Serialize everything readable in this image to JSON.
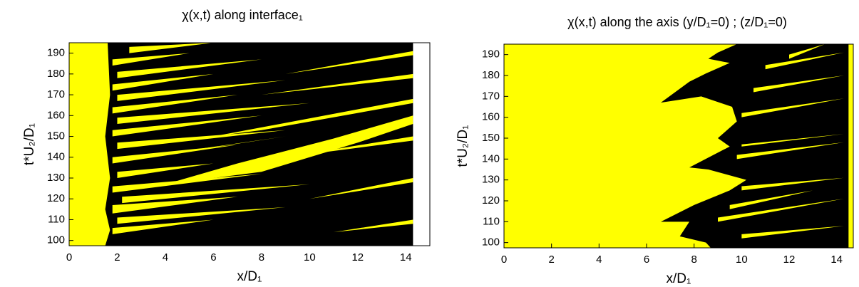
{
  "chart_data": [
    {
      "type": "phase_map",
      "title": "χ(x,t) along interface₁",
      "x_label": "x/D₁",
      "y_label": "t*U₂/D₁",
      "xlim": [
        0,
        15
      ],
      "ylim": [
        97.5,
        195
      ],
      "xticks": [
        0,
        2,
        4,
        6,
        8,
        10,
        12,
        14
      ],
      "yticks": [
        100,
        110,
        120,
        130,
        140,
        150,
        160,
        170,
        180,
        190
      ],
      "background": "#000000",
      "regions": [
        {
          "color": "#ffff00",
          "points": [
            [
              0,
              97.5
            ],
            [
              1.5,
              97.5
            ],
            [
              1.7,
              105
            ],
            [
              1.5,
              115
            ],
            [
              1.7,
              130
            ],
            [
              1.5,
              150
            ],
            [
              1.7,
              170
            ],
            [
              1.6,
              195
            ],
            [
              0,
              195
            ]
          ]
        },
        {
          "color": "#ffff00",
          "points": [
            [
              1.8,
              103
            ],
            [
              6,
              110
            ],
            [
              1.8,
              106
            ]
          ]
        },
        {
          "color": "#ffff00",
          "points": [
            [
              2,
              108
            ],
            [
              9,
              116
            ],
            [
              2,
              111
            ]
          ]
        },
        {
          "color": "#ffff00",
          "points": [
            [
              1.8,
              113
            ],
            [
              7,
              121
            ],
            [
              1.8,
              117
            ]
          ]
        },
        {
          "color": "#ffff00",
          "points": [
            [
              2.2,
              118
            ],
            [
              10,
              127
            ],
            [
              2.2,
              121
            ]
          ]
        },
        {
          "color": "#ffff00",
          "points": [
            [
              1.8,
              123
            ],
            [
              8,
              132
            ],
            [
              1.8,
              126
            ]
          ]
        },
        {
          "color": "#ffff00",
          "points": [
            [
              2,
              130
            ],
            [
              6,
              137
            ],
            [
              2,
              133
            ]
          ]
        },
        {
          "color": "#ffff00",
          "points": [
            [
              1.8,
              137
            ],
            [
              7,
              146
            ],
            [
              1.8,
              140
            ]
          ]
        },
        {
          "color": "#ffff00",
          "points": [
            [
              2,
              144
            ],
            [
              9,
              153
            ],
            [
              2,
              147
            ]
          ]
        },
        {
          "color": "#ffff00",
          "points": [
            [
              1.8,
              150
            ],
            [
              8,
              160
            ],
            [
              1.8,
              153
            ]
          ]
        },
        {
          "color": "#ffff00",
          "points": [
            [
              2,
              156
            ],
            [
              10,
              166
            ],
            [
              2,
              159
            ]
          ]
        },
        {
          "color": "#ffff00",
          "points": [
            [
              1.8,
              161
            ],
            [
              7,
              170
            ],
            [
              1.8,
              164
            ]
          ]
        },
        {
          "color": "#ffff00",
          "points": [
            [
              2,
              167
            ],
            [
              9,
              177
            ],
            [
              2,
              170
            ]
          ]
        },
        {
          "color": "#ffff00",
          "points": [
            [
              1.8,
              172
            ],
            [
              6,
              180
            ],
            [
              1.8,
              175
            ]
          ]
        },
        {
          "color": "#ffff00",
          "points": [
            [
              2,
              178
            ],
            [
              8,
              187
            ],
            [
              2,
              181
            ]
          ]
        },
        {
          "color": "#ffff00",
          "points": [
            [
              1.8,
              184
            ],
            [
              5,
              190
            ],
            [
              1.8,
              187
            ]
          ]
        },
        {
          "color": "#ffff00",
          "points": [
            [
              2.5,
              190
            ],
            [
              6,
              195
            ],
            [
              2.5,
              193
            ]
          ]
        },
        {
          "color": "#ffff00",
          "points": [
            [
              6,
              150
            ],
            [
              14.3,
              168
            ],
            [
              14.3,
              166
            ],
            [
              8,
              153
            ]
          ]
        },
        {
          "color": "#ffff00",
          "points": [
            [
              9,
              140
            ],
            [
              14.3,
              150
            ],
            [
              14.3,
              148
            ]
          ]
        },
        {
          "color": "#ffff00",
          "points": [
            [
              8,
              170
            ],
            [
              14.3,
              180
            ],
            [
              14.3,
              178
            ]
          ]
        },
        {
          "color": "#ffff00",
          "points": [
            [
              9,
              180
            ],
            [
              14.3,
              191
            ],
            [
              14.3,
              189
            ]
          ]
        },
        {
          "color": "#ffff00",
          "points": [
            [
              10,
              120
            ],
            [
              14.3,
              130
            ],
            [
              14.3,
              128
            ]
          ]
        },
        {
          "color": "#ffff00",
          "points": [
            [
              11,
              104
            ],
            [
              14.3,
              110
            ],
            [
              14.3,
              108
            ]
          ]
        },
        {
          "color": "#ffff00",
          "points": [
            [
              3,
              140
            ],
            [
              9,
              150
            ],
            [
              5,
              143
            ]
          ]
        },
        {
          "color": "#ffff00",
          "points": [
            [
              4,
              127
            ],
            [
              8,
              133
            ],
            [
              12,
              147
            ],
            [
              14.3,
              156
            ],
            [
              14.3,
              160
            ],
            [
              11,
              149
            ],
            [
              7,
              137
            ]
          ]
        },
        {
          "color": "#ffffff",
          "points": [
            [
              14.3,
              97.5
            ],
            [
              15,
              97.5
            ],
            [
              15,
              195
            ],
            [
              14.3,
              195
            ]
          ]
        }
      ]
    },
    {
      "type": "phase_map",
      "title": "χ(x,t) along the axis (y/D₁=0) ;  (z/D₁=0)",
      "x_label": "x/D₁",
      "y_label": "t*U₂/D₁",
      "xlim": [
        0,
        14.7
      ],
      "ylim": [
        97.5,
        195
      ],
      "xticks": [
        0,
        2,
        4,
        6,
        8,
        10,
        12,
        14
      ],
      "yticks": [
        100,
        110,
        120,
        130,
        140,
        150,
        160,
        170,
        180,
        190
      ],
      "background": "#ffff00",
      "regions": [
        {
          "color": "#000000",
          "points": [
            [
              9.8,
              195
            ],
            [
              9,
              191
            ],
            [
              8.6,
              188
            ],
            [
              9.5,
              186
            ],
            [
              8.5,
              181
            ],
            [
              7.8,
              177
            ],
            [
              6.6,
              167
            ],
            [
              8.3,
              170
            ],
            [
              9.6,
              165
            ],
            [
              9.8,
              158
            ],
            [
              9,
              150
            ],
            [
              9.5,
              146
            ],
            [
              7.8,
              136
            ],
            [
              8.6,
              135
            ],
            [
              10.2,
              130
            ],
            [
              9.5,
              125
            ],
            [
              8,
              118
            ],
            [
              6.6,
              110
            ],
            [
              7.8,
              110
            ],
            [
              7.4,
              103
            ],
            [
              8.5,
              100
            ],
            [
              8.7,
              97.5
            ],
            [
              14.5,
              97.5
            ],
            [
              14.5,
              195
            ]
          ]
        },
        {
          "color": "#ffff00",
          "points": [
            [
              9,
              110
            ],
            [
              14.3,
              121
            ],
            [
              9,
              112
            ]
          ]
        },
        {
          "color": "#ffff00",
          "points": [
            [
              9.5,
              116
            ],
            [
              13,
              125
            ],
            [
              9.5,
              118
            ]
          ]
        },
        {
          "color": "#ffff00",
          "points": [
            [
              10,
              125
            ],
            [
              14.3,
              131
            ],
            [
              10,
              127
            ]
          ]
        },
        {
          "color": "#ffff00",
          "points": [
            [
              9.8,
              140
            ],
            [
              14.3,
              148
            ],
            [
              9.8,
              142
            ]
          ]
        },
        {
          "color": "#ffff00",
          "points": [
            [
              10,
              146
            ],
            [
              14.3,
              152
            ],
            [
              10,
              147
            ]
          ]
        },
        {
          "color": "#ffff00",
          "points": [
            [
              10,
              160
            ],
            [
              14.3,
              169
            ],
            [
              10,
              162
            ]
          ]
        },
        {
          "color": "#ffff00",
          "points": [
            [
              10.5,
              172
            ],
            [
              14.3,
              180
            ],
            [
              10.5,
              174
            ]
          ]
        },
        {
          "color": "#ffff00",
          "points": [
            [
              11,
              183
            ],
            [
              14.3,
              191
            ],
            [
              11,
              185
            ]
          ]
        },
        {
          "color": "#ffff00",
          "points": [
            [
              10,
              102
            ],
            [
              14.3,
              108
            ],
            [
              10,
              104
            ]
          ]
        },
        {
          "color": "#ffff00",
          "points": [
            [
              12,
              188
            ],
            [
              13.5,
              195
            ],
            [
              12,
              190
            ]
          ]
        }
      ]
    }
  ]
}
